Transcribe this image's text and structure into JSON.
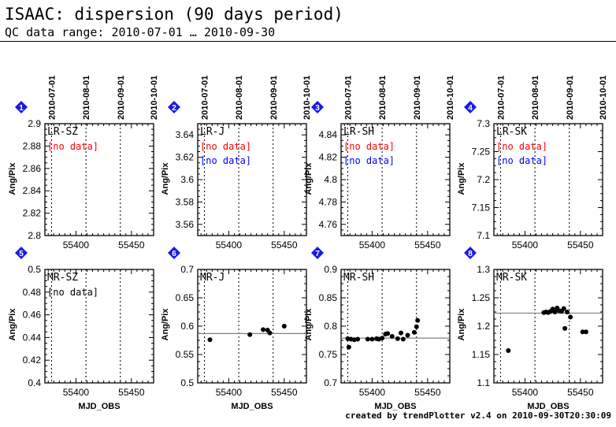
{
  "header": {
    "title": "ISAAC: dispersion (90 days period)",
    "subtitle": "QC data range: 2010-07-01 … 2010-09-30"
  },
  "footer": "created by trendPlotter v2.4 on 2010-09-30T20:30:09",
  "date_ticks": [
    "2010-07-01",
    "2010-08-01",
    "2010-09-01",
    "2010-10-01"
  ],
  "date_tick_mjd": [
    55378,
    55409,
    55440,
    55470
  ],
  "colors": {
    "badge": "#1a1ae6",
    "nodata_red": "#ff0000",
    "nodata_blue": "#0000ff",
    "points": "#000000",
    "refline": "#808080"
  },
  "chart_data": [
    {
      "type": "scatter",
      "badge": "1",
      "label": "LR-SZ",
      "xlabel": "",
      "ylabel": "Ang/Pix",
      "xlim": [
        55372,
        55470
      ],
      "ylim": [
        2.8,
        2.9
      ],
      "yticks": [
        "2.8",
        "2.82",
        "2.84",
        "2.86",
        "2.88",
        "2.9"
      ],
      "xticks": [
        "55400",
        "55450"
      ],
      "nodata": [
        {
          "text": "[no data]",
          "color": "red"
        }
      ],
      "points": [],
      "refline": null
    },
    {
      "type": "scatter",
      "badge": "2",
      "label": "LR-J",
      "xlabel": "",
      "ylabel": "Ang/Pix",
      "xlim": [
        55372,
        55470
      ],
      "ylim": [
        3.55,
        3.65
      ],
      "yticks": [
        "3.56",
        "3.58",
        "3.6",
        "3.62",
        "3.64"
      ],
      "xticks": [
        "55400",
        "55450"
      ],
      "nodata": [
        {
          "text": "[no data]",
          "color": "red"
        },
        {
          "text": "[no data]",
          "color": "blue"
        }
      ],
      "points": [],
      "refline": null
    },
    {
      "type": "scatter",
      "badge": "3",
      "label": "LR-SH",
      "xlabel": "",
      "ylabel": "Ang/Pix",
      "xlim": [
        55372,
        55470
      ],
      "ylim": [
        4.75,
        4.85
      ],
      "yticks": [
        "4.76",
        "4.78",
        "4.8",
        "4.82",
        "4.84"
      ],
      "xticks": [
        "55400",
        "55450"
      ],
      "nodata": [
        {
          "text": "[no data]",
          "color": "red"
        },
        {
          "text": "[no data]",
          "color": "blue"
        }
      ],
      "points": [],
      "refline": null
    },
    {
      "type": "scatter",
      "badge": "4",
      "label": "LR-SK",
      "xlabel": "",
      "ylabel": "Ang/Pix",
      "xlim": [
        55372,
        55470
      ],
      "ylim": [
        7.1,
        7.3
      ],
      "yticks": [
        "7.1",
        "7.15",
        "7.2",
        "7.25",
        "7.3"
      ],
      "xticks": [
        "55400",
        "55450"
      ],
      "nodata": [
        {
          "text": "[no data]",
          "color": "red"
        },
        {
          "text": "[no data]",
          "color": "blue"
        }
      ],
      "points": [],
      "refline": null
    },
    {
      "type": "scatter",
      "badge": "5",
      "label": "MR-SZ",
      "xlabel": "MJD_OBS",
      "ylabel": "Ang/Pix",
      "xlim": [
        55372,
        55470
      ],
      "ylim": [
        0.4,
        0.5
      ],
      "yticks": [
        "0.4",
        "0.42",
        "0.44",
        "0.46",
        "0.48",
        "0.5"
      ],
      "xticks": [
        "55400",
        "55450"
      ],
      "nodata": [
        {
          "text": "[no data]",
          "color": "black"
        }
      ],
      "points": [],
      "refline": null
    },
    {
      "type": "scatter",
      "badge": "6",
      "label": "MR-J",
      "xlabel": "MJD_OBS",
      "ylabel": "Ang/Pix",
      "xlim": [
        55372,
        55470
      ],
      "ylim": [
        0.5,
        0.7
      ],
      "yticks": [
        "0.5",
        "0.55",
        "0.6",
        "0.65",
        "0.7"
      ],
      "xticks": [
        "55400",
        "55450"
      ],
      "nodata": [],
      "points": [
        [
          55383,
          0.576
        ],
        [
          55419,
          0.585
        ],
        [
          55431,
          0.594
        ],
        [
          55435,
          0.593
        ],
        [
          55437,
          0.588
        ],
        [
          55450,
          0.6
        ]
      ],
      "refline": 0.587
    },
    {
      "type": "scatter",
      "badge": "7",
      "label": "MR-SH",
      "xlabel": "MJD_OBS",
      "ylabel": "Ang/Pix",
      "xlim": [
        55372,
        55470
      ],
      "ylim": [
        0.7,
        0.9
      ],
      "yticks": [
        "0.7",
        "0.75",
        "0.8",
        "0.85",
        "0.9"
      ],
      "xticks": [
        "55400",
        "55450"
      ],
      "nodata": [],
      "points": [
        [
          55378,
          0.778
        ],
        [
          55379,
          0.763
        ],
        [
          55381,
          0.777
        ],
        [
          55384,
          0.776
        ],
        [
          55387,
          0.777
        ],
        [
          55396,
          0.777
        ],
        [
          55400,
          0.777
        ],
        [
          55404,
          0.778
        ],
        [
          55406,
          0.777
        ],
        [
          55409,
          0.779
        ],
        [
          55412,
          0.786
        ],
        [
          55414,
          0.787
        ],
        [
          55418,
          0.782
        ],
        [
          55423,
          0.778
        ],
        [
          55426,
          0.788
        ],
        [
          55428,
          0.777
        ],
        [
          55432,
          0.784
        ],
        [
          55438,
          0.789
        ],
        [
          55440,
          0.799
        ],
        [
          55441,
          0.81
        ]
      ],
      "refline": 0.779
    },
    {
      "type": "scatter",
      "badge": "8",
      "label": "MR-SK",
      "xlabel": "MJD_OBS",
      "ylabel": "Ang/Pix",
      "xlim": [
        55372,
        55470
      ],
      "ylim": [
        1.1,
        1.3
      ],
      "yticks": [
        "1.1",
        "1.15",
        "1.2",
        "1.25",
        "1.3"
      ],
      "xticks": [
        "55400",
        "55450"
      ],
      "nodata": [],
      "points": [
        [
          55385,
          1.157
        ],
        [
          55417,
          1.224
        ],
        [
          55419,
          1.225
        ],
        [
          55421,
          1.224
        ],
        [
          55423,
          1.226
        ],
        [
          55425,
          1.23
        ],
        [
          55427,
          1.225
        ],
        [
          55429,
          1.232
        ],
        [
          55431,
          1.227
        ],
        [
          55433,
          1.226
        ],
        [
          55435,
          1.231
        ],
        [
          55436,
          1.196
        ],
        [
          55438,
          1.225
        ],
        [
          55441,
          1.216
        ],
        [
          55452,
          1.19
        ],
        [
          55455,
          1.19
        ]
      ],
      "refline": 1.223
    }
  ]
}
